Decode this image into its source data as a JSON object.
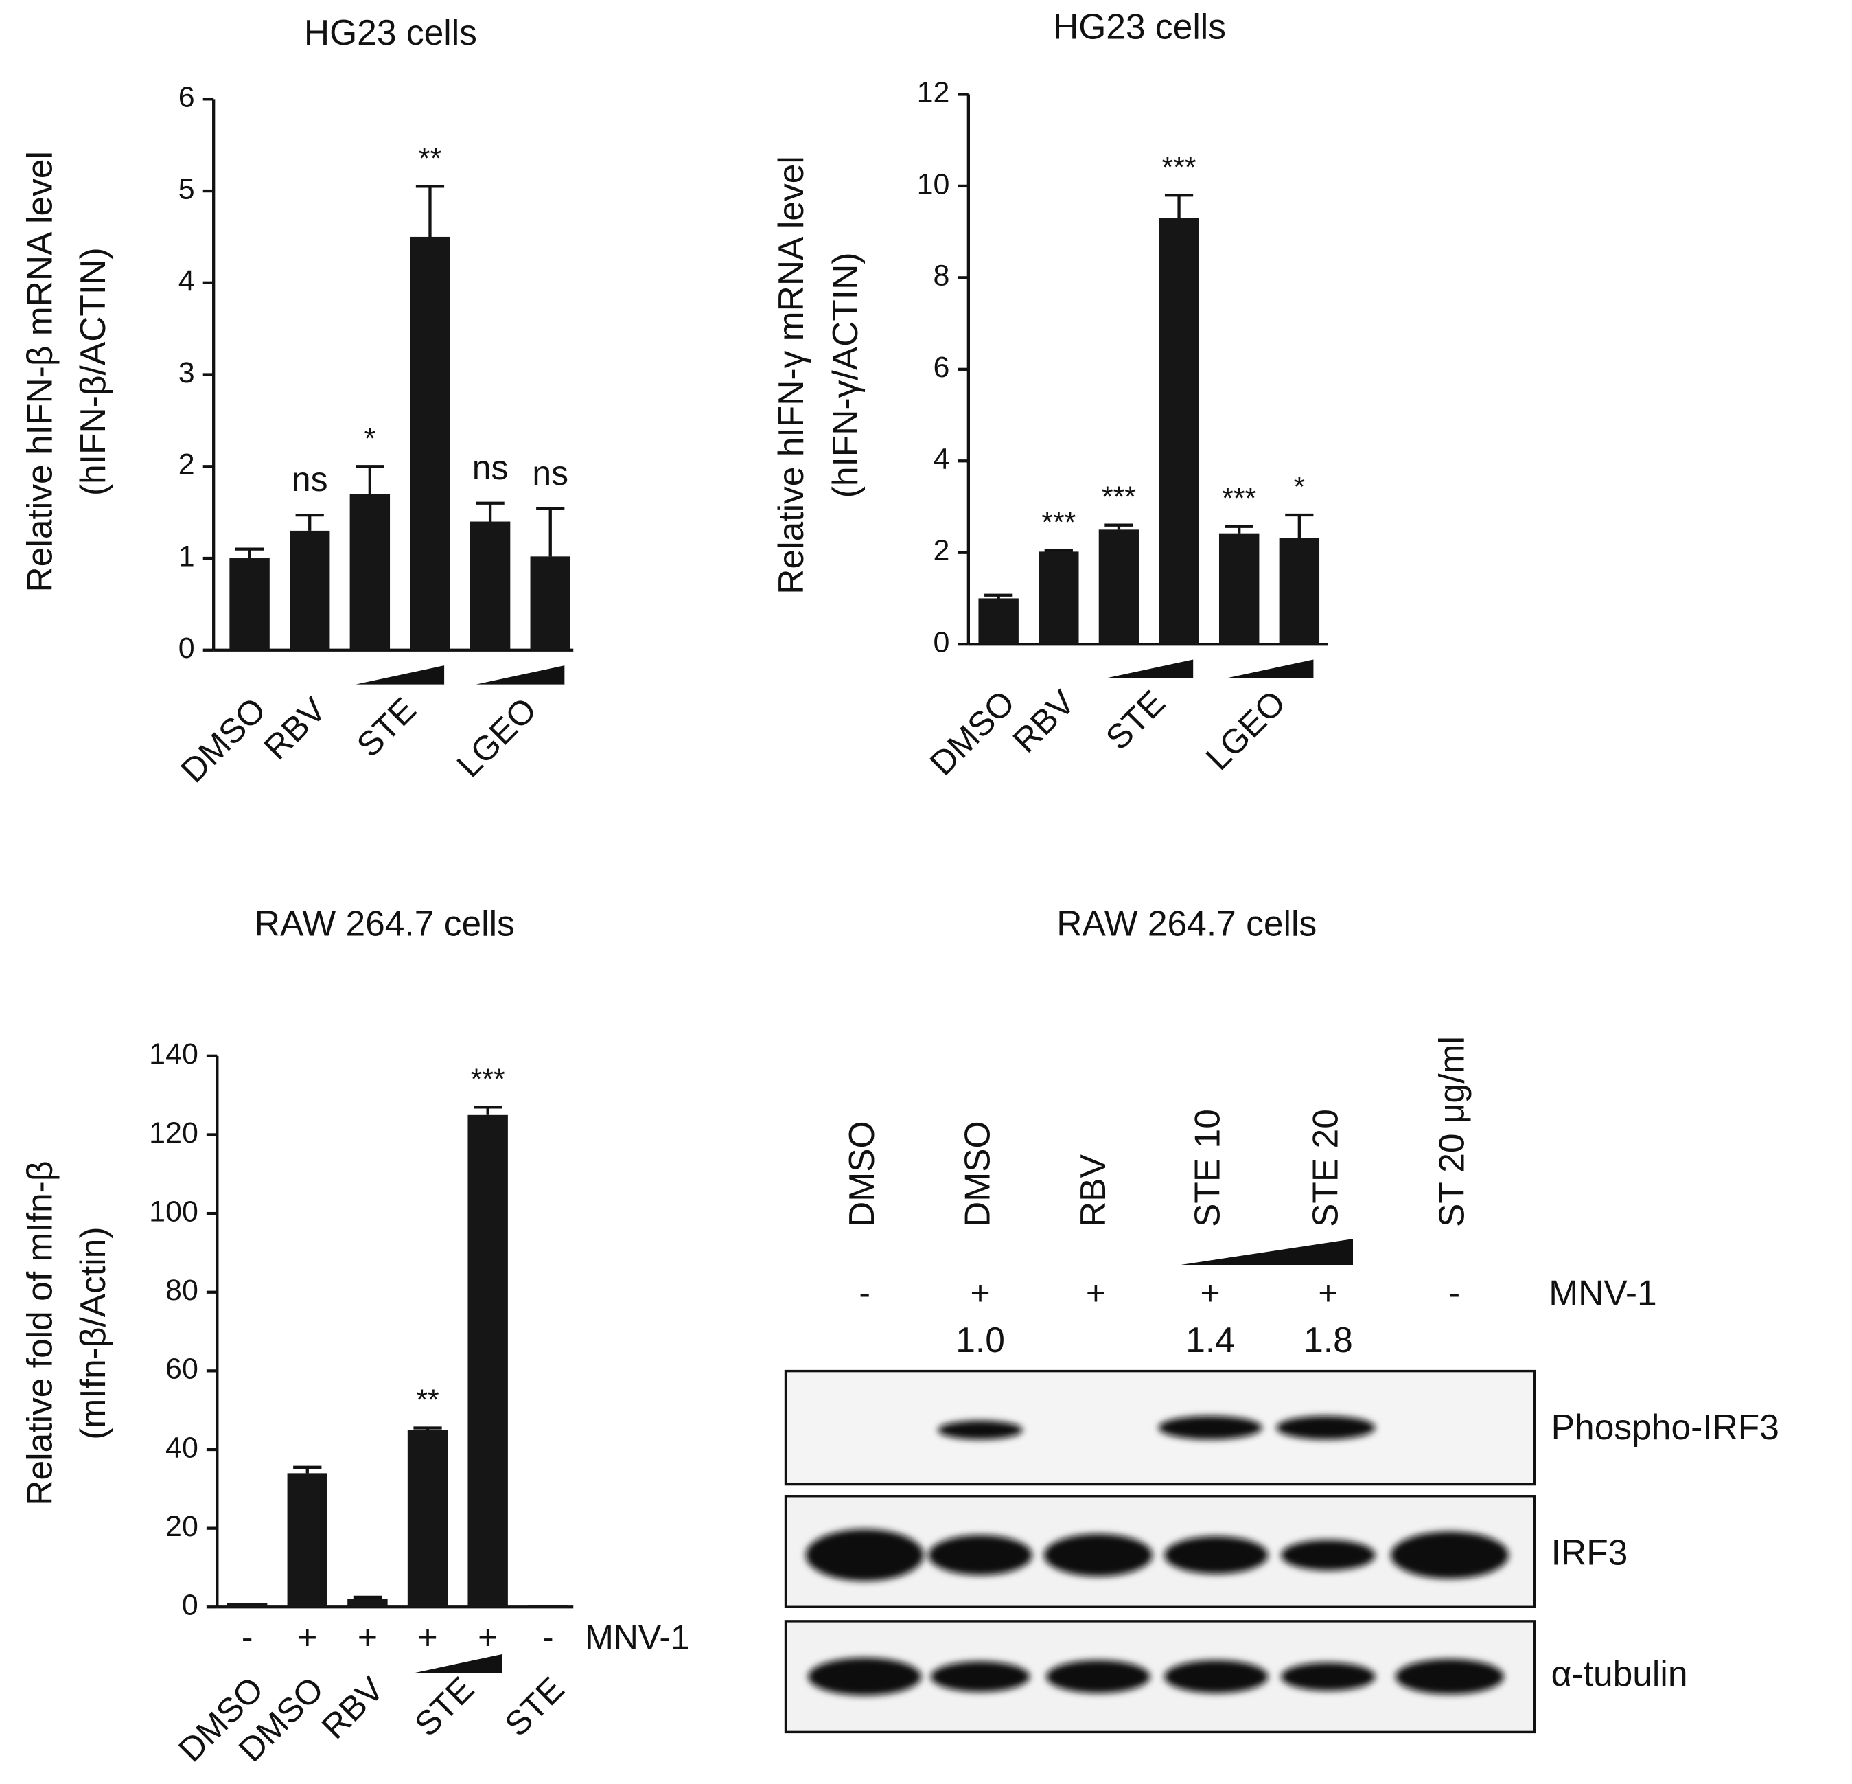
{
  "chart_data": [
    {
      "type": "bar",
      "title": "HG23 cells",
      "y_label": [
        "Relative hIFN-β mRNA level",
        "(hIFN-β/ACTIN)"
      ],
      "categories": [
        "DMSO",
        "RBV",
        null,
        "STE",
        null,
        "LGEO"
      ],
      "values": [
        1.0,
        1.3,
        1.7,
        4.5,
        1.4,
        1.02
      ],
      "errors": [
        0.1,
        0.17,
        0.3,
        0.55,
        0.2,
        0.52
      ],
      "annotations": [
        null,
        "ns",
        "*",
        "**",
        "ns",
        "ns"
      ],
      "color": "#161616",
      "ylim": [
        0,
        6
      ],
      "yticks": [
        0,
        1,
        2,
        3,
        4,
        5,
        6
      ]
    },
    {
      "type": "bar",
      "title": "HG23 cells",
      "y_label": [
        "Relative hIFN-γ mRNA level",
        "(hIFN-γ/ACTIN)"
      ],
      "categories": [
        "DMSO",
        "RBV",
        null,
        "STE",
        null,
        "LGEO"
      ],
      "values": [
        1.0,
        2.02,
        2.5,
        9.3,
        2.42,
        2.32
      ],
      "errors": [
        0.07,
        0.03,
        0.1,
        0.5,
        0.15,
        0.5
      ],
      "annotations": [
        null,
        "***",
        "***",
        "***",
        "***",
        "*"
      ],
      "color": "#161616",
      "ylim": [
        0,
        12
      ],
      "yticks": [
        0,
        2,
        4,
        6,
        8,
        10,
        12
      ]
    },
    {
      "type": "bar",
      "title": "RAW 264.7 cells",
      "y_label": [
        "Relative  fold of mIfn-β",
        "(mIfn-β/Actin)"
      ],
      "categories": [
        "DMSO",
        "DMSO",
        "RBV",
        null,
        "STE",
        "STE"
      ],
      "values": [
        1,
        34,
        2,
        45,
        125,
        0.5
      ],
      "errors": [
        0,
        1.5,
        0.5,
        0.5,
        2,
        0
      ],
      "annotations": [
        null,
        null,
        null,
        "**",
        "***",
        null
      ],
      "mnv": {
        "label": "MNV-1",
        "values": [
          "-",
          "+",
          "+",
          "+",
          "+",
          "-"
        ]
      },
      "color": "#161616",
      "ylim": [
        0,
        140
      ],
      "yticks": [
        0,
        20,
        40,
        60,
        80,
        100,
        120,
        140
      ]
    }
  ],
  "blot": {
    "title": "RAW 264.7 cells",
    "lanes": [
      "DMSO",
      "DMSO",
      "RBV",
      "STE 10",
      "STE 20",
      "ST 20 μg/ml"
    ],
    "mnv": {
      "label": "MNV-1",
      "values": [
        "-",
        "+",
        "+",
        "+",
        "+",
        "-"
      ]
    },
    "quant": [
      null,
      "1.0",
      null,
      "1.4",
      "1.8",
      null
    ],
    "rows": [
      "Phospho-IRF3",
      "IRF3",
      "α-tubulin"
    ]
  }
}
